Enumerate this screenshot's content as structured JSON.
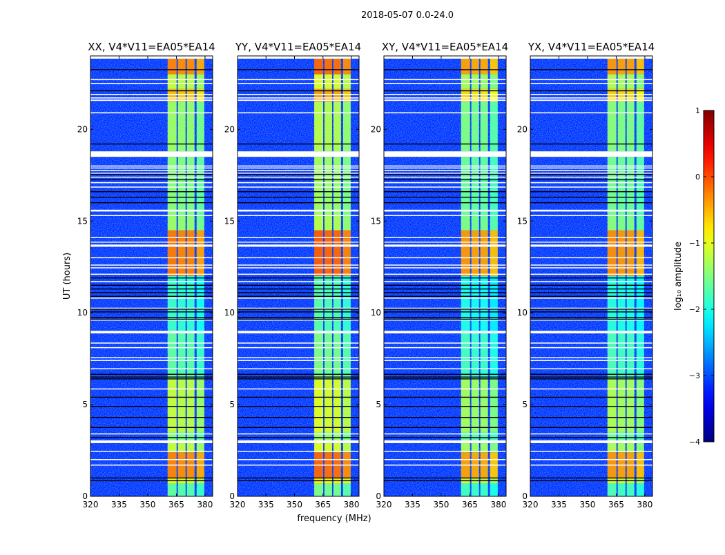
{
  "chart_data": {
    "type": "heatmap",
    "suptitle": "2018-05-07 0.0-24.0",
    "xlabel": "frequency (MHz)",
    "ylabel": "UT (hours)",
    "xlim": [
      320,
      384
    ],
    "ylim": [
      0,
      24
    ],
    "xticks": [
      "320",
      "335",
      "350",
      "365",
      "380"
    ],
    "yticks": [
      "0",
      "5",
      "10",
      "15",
      "20"
    ],
    "colorbar": {
      "label": "log₁₀ amplitude",
      "range": [
        -4,
        1
      ],
      "ticks": [
        "1",
        "0",
        "−1",
        "−2",
        "−3",
        "−4"
      ],
      "colormap": "jet"
    },
    "panels": [
      {
        "title": "XX, V4*V11=EA05*EA14",
        "band_offset": 0.0
      },
      {
        "title": "YY, V4*V11=EA05*EA14",
        "band_offset": 0.15
      },
      {
        "title": "XY, V4*V11=EA05*EA14",
        "band_offset": -0.15
      },
      {
        "title": "YX, V4*V11=EA05*EA14",
        "band_offset": -0.1
      }
    ],
    "background_level": -3.2,
    "spectral_windows_mhz": [
      [
        360.4,
        365.1
      ],
      [
        365.8,
        369.8
      ],
      [
        370.5,
        374.5
      ],
      [
        375.6,
        379.6
      ]
    ],
    "band_levels_hours": [
      [
        0.0,
        0.7,
        -1.7
      ],
      [
        0.7,
        1.0,
        -1.0
      ],
      [
        1.0,
        2.4,
        -0.3
      ],
      [
        2.4,
        3.0,
        -1.2
      ],
      [
        3.0,
        3.5,
        -1.5
      ],
      [
        3.5,
        6.4,
        -1.2
      ],
      [
        6.4,
        9.0,
        -1.7
      ],
      [
        9.0,
        12.0,
        -1.9
      ],
      [
        12.0,
        14.5,
        -0.25
      ],
      [
        14.5,
        15.3,
        -1.4
      ],
      [
        15.3,
        18.5,
        -1.5
      ],
      [
        18.8,
        21.5,
        -1.4
      ],
      [
        21.5,
        22.2,
        -0.6
      ],
      [
        22.2,
        23.0,
        -1.2
      ],
      [
        23.0,
        24.0,
        -0.3
      ]
    ],
    "flagged_hours": [
      [
        23.85,
        24.0
      ],
      [
        22.68,
        22.74
      ],
      [
        22.47,
        22.53
      ],
      [
        21.87,
        21.93
      ],
      [
        21.68,
        21.74
      ],
      [
        21.55,
        21.62
      ],
      [
        20.87,
        20.93
      ],
      [
        18.5,
        18.8
      ],
      [
        17.97,
        18.03
      ],
      [
        17.87,
        17.92
      ],
      [
        17.73,
        17.78
      ],
      [
        17.58,
        17.63
      ],
      [
        17.37,
        17.42
      ],
      [
        17.07,
        17.12
      ],
      [
        16.83,
        16.88
      ],
      [
        15.52,
        15.62
      ],
      [
        15.28,
        15.33
      ],
      [
        14.08,
        14.13
      ],
      [
        13.83,
        13.88
      ],
      [
        13.6,
        13.72
      ],
      [
        12.98,
        13.03
      ],
      [
        12.58,
        12.63
      ],
      [
        12.43,
        12.48
      ],
      [
        12.08,
        12.13
      ],
      [
        11.68,
        11.73
      ],
      [
        10.78,
        10.83
      ],
      [
        10.22,
        10.28
      ],
      [
        9.58,
        9.63
      ],
      [
        8.88,
        9.02
      ],
      [
        8.33,
        8.38
      ],
      [
        8.08,
        8.13
      ],
      [
        7.53,
        7.58
      ],
      [
        7.38,
        7.43
      ],
      [
        6.93,
        6.98
      ],
      [
        5.83,
        5.88
      ],
      [
        3.38,
        3.43
      ],
      [
        2.9,
        3.05
      ],
      [
        2.43,
        2.48
      ],
      [
        1.98,
        2.03
      ],
      [
        1.68,
        1.73
      ]
    ],
    "dropout_hours": [
      23.25,
      22.1,
      19.2,
      17.55,
      17.25,
      16.6,
      16.3,
      16.0,
      11.9,
      11.5,
      11.3,
      11.1,
      10.9,
      10.2,
      10.05,
      9.75,
      9.65,
      6.65,
      6.5,
      6.4,
      5.4,
      4.9,
      4.3,
      3.75,
      3.2,
      1.0,
      0.85
    ]
  }
}
